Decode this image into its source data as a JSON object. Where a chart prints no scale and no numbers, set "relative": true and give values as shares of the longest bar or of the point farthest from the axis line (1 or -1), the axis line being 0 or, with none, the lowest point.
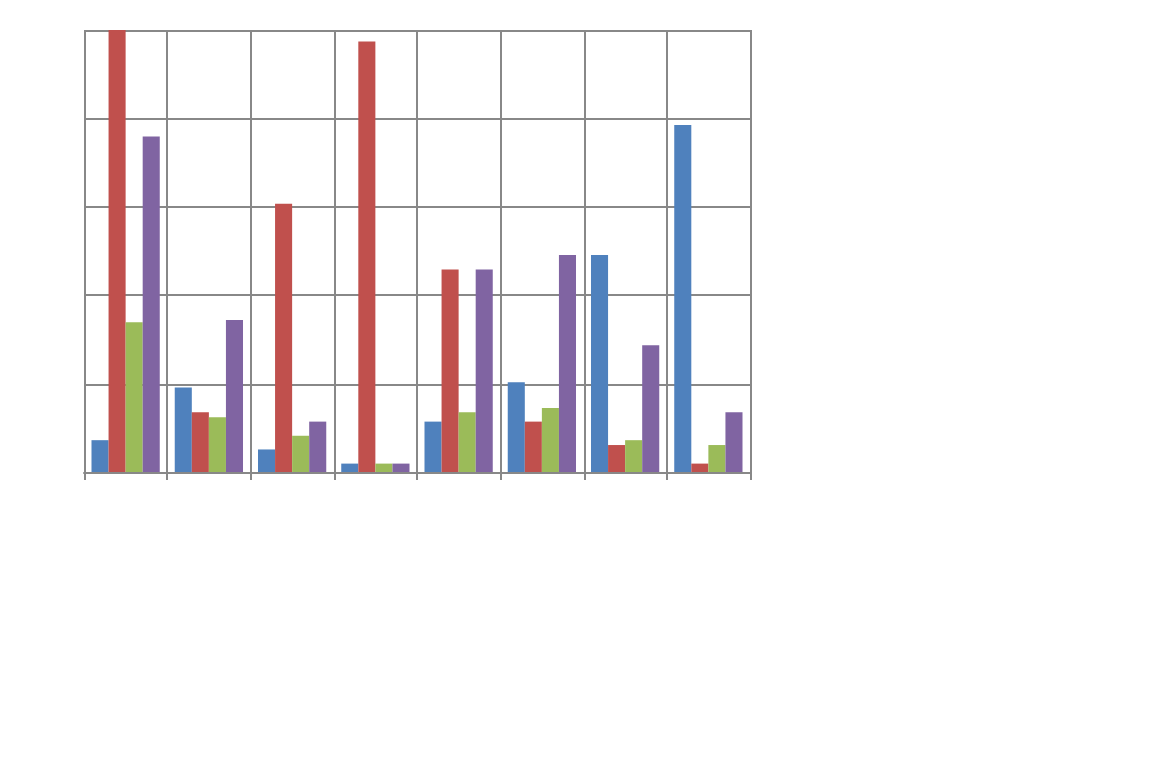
{
  "chart_data": {
    "type": "bar",
    "relative": true,
    "grid": true,
    "categories": [
      null,
      null,
      null,
      null,
      null,
      null,
      null,
      null
    ],
    "series": [
      {
        "color": "#4f81bd",
        "values": [
          0.072,
          0.191,
          0.051,
          0.019,
          0.114,
          0.203,
          0.491,
          0.785
        ]
      },
      {
        "color": "#c0504d",
        "values": [
          1,
          0.135,
          0.607,
          0.974,
          0.458,
          0.114,
          0.061,
          0.019
        ]
      },
      {
        "color": "#9bbb59",
        "values": [
          0.339,
          0.124,
          0.082,
          0.019,
          0.135,
          0.145,
          0.072,
          0.061
        ]
      },
      {
        "color": "#8064a2",
        "values": [
          0.759,
          0.344,
          0.114,
          0.019,
          0.458,
          0.491,
          0.287,
          0.135
        ]
      }
    ]
  }
}
